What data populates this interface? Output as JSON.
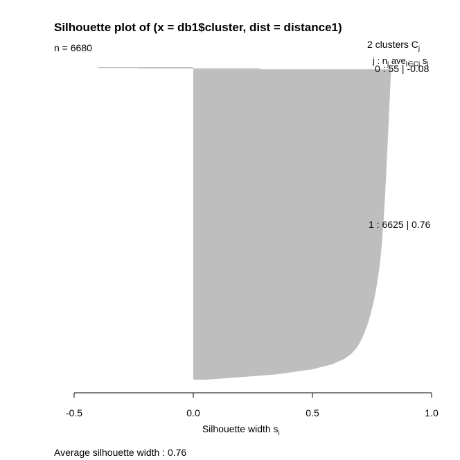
{
  "chart_data": {
    "type": "bar",
    "orientation": "horizontal",
    "title": "Silhouette plot of (x = db1$cluster, dist = distance1)",
    "n_label": "n = 6680",
    "legend_header": "2  clusters  C",
    "legend_header_sub": "j",
    "legend_sub_j": "j :  n",
    "legend_sub_ave": "ave",
    "legend_sub_i": "i∈Cj",
    "legend_sub_s": "s",
    "legend_sub_si": "i",
    "clusters": [
      {
        "id": "0",
        "n": "55",
        "avg": "-0.08",
        "label": "0 :   55  |  -0.08",
        "min": -0.4,
        "max": 0.28
      },
      {
        "id": "1",
        "n": "6625",
        "avg": "0.76",
        "label": "1 :   6625  |  0.76",
        "min": 0.0,
        "max": 0.83
      }
    ],
    "xlabel": "Silhouette width s",
    "xlabel_sub": "i",
    "xlim": [
      -0.5,
      1.0
    ],
    "xticks": [
      "-0.5",
      "0.0",
      "0.5",
      "1.0"
    ],
    "xtick_values": [
      -0.5,
      0.0,
      0.5,
      1.0
    ],
    "bar_color": "#bebebe",
    "average_silhouette": "Average silhouette width :  0.76"
  }
}
